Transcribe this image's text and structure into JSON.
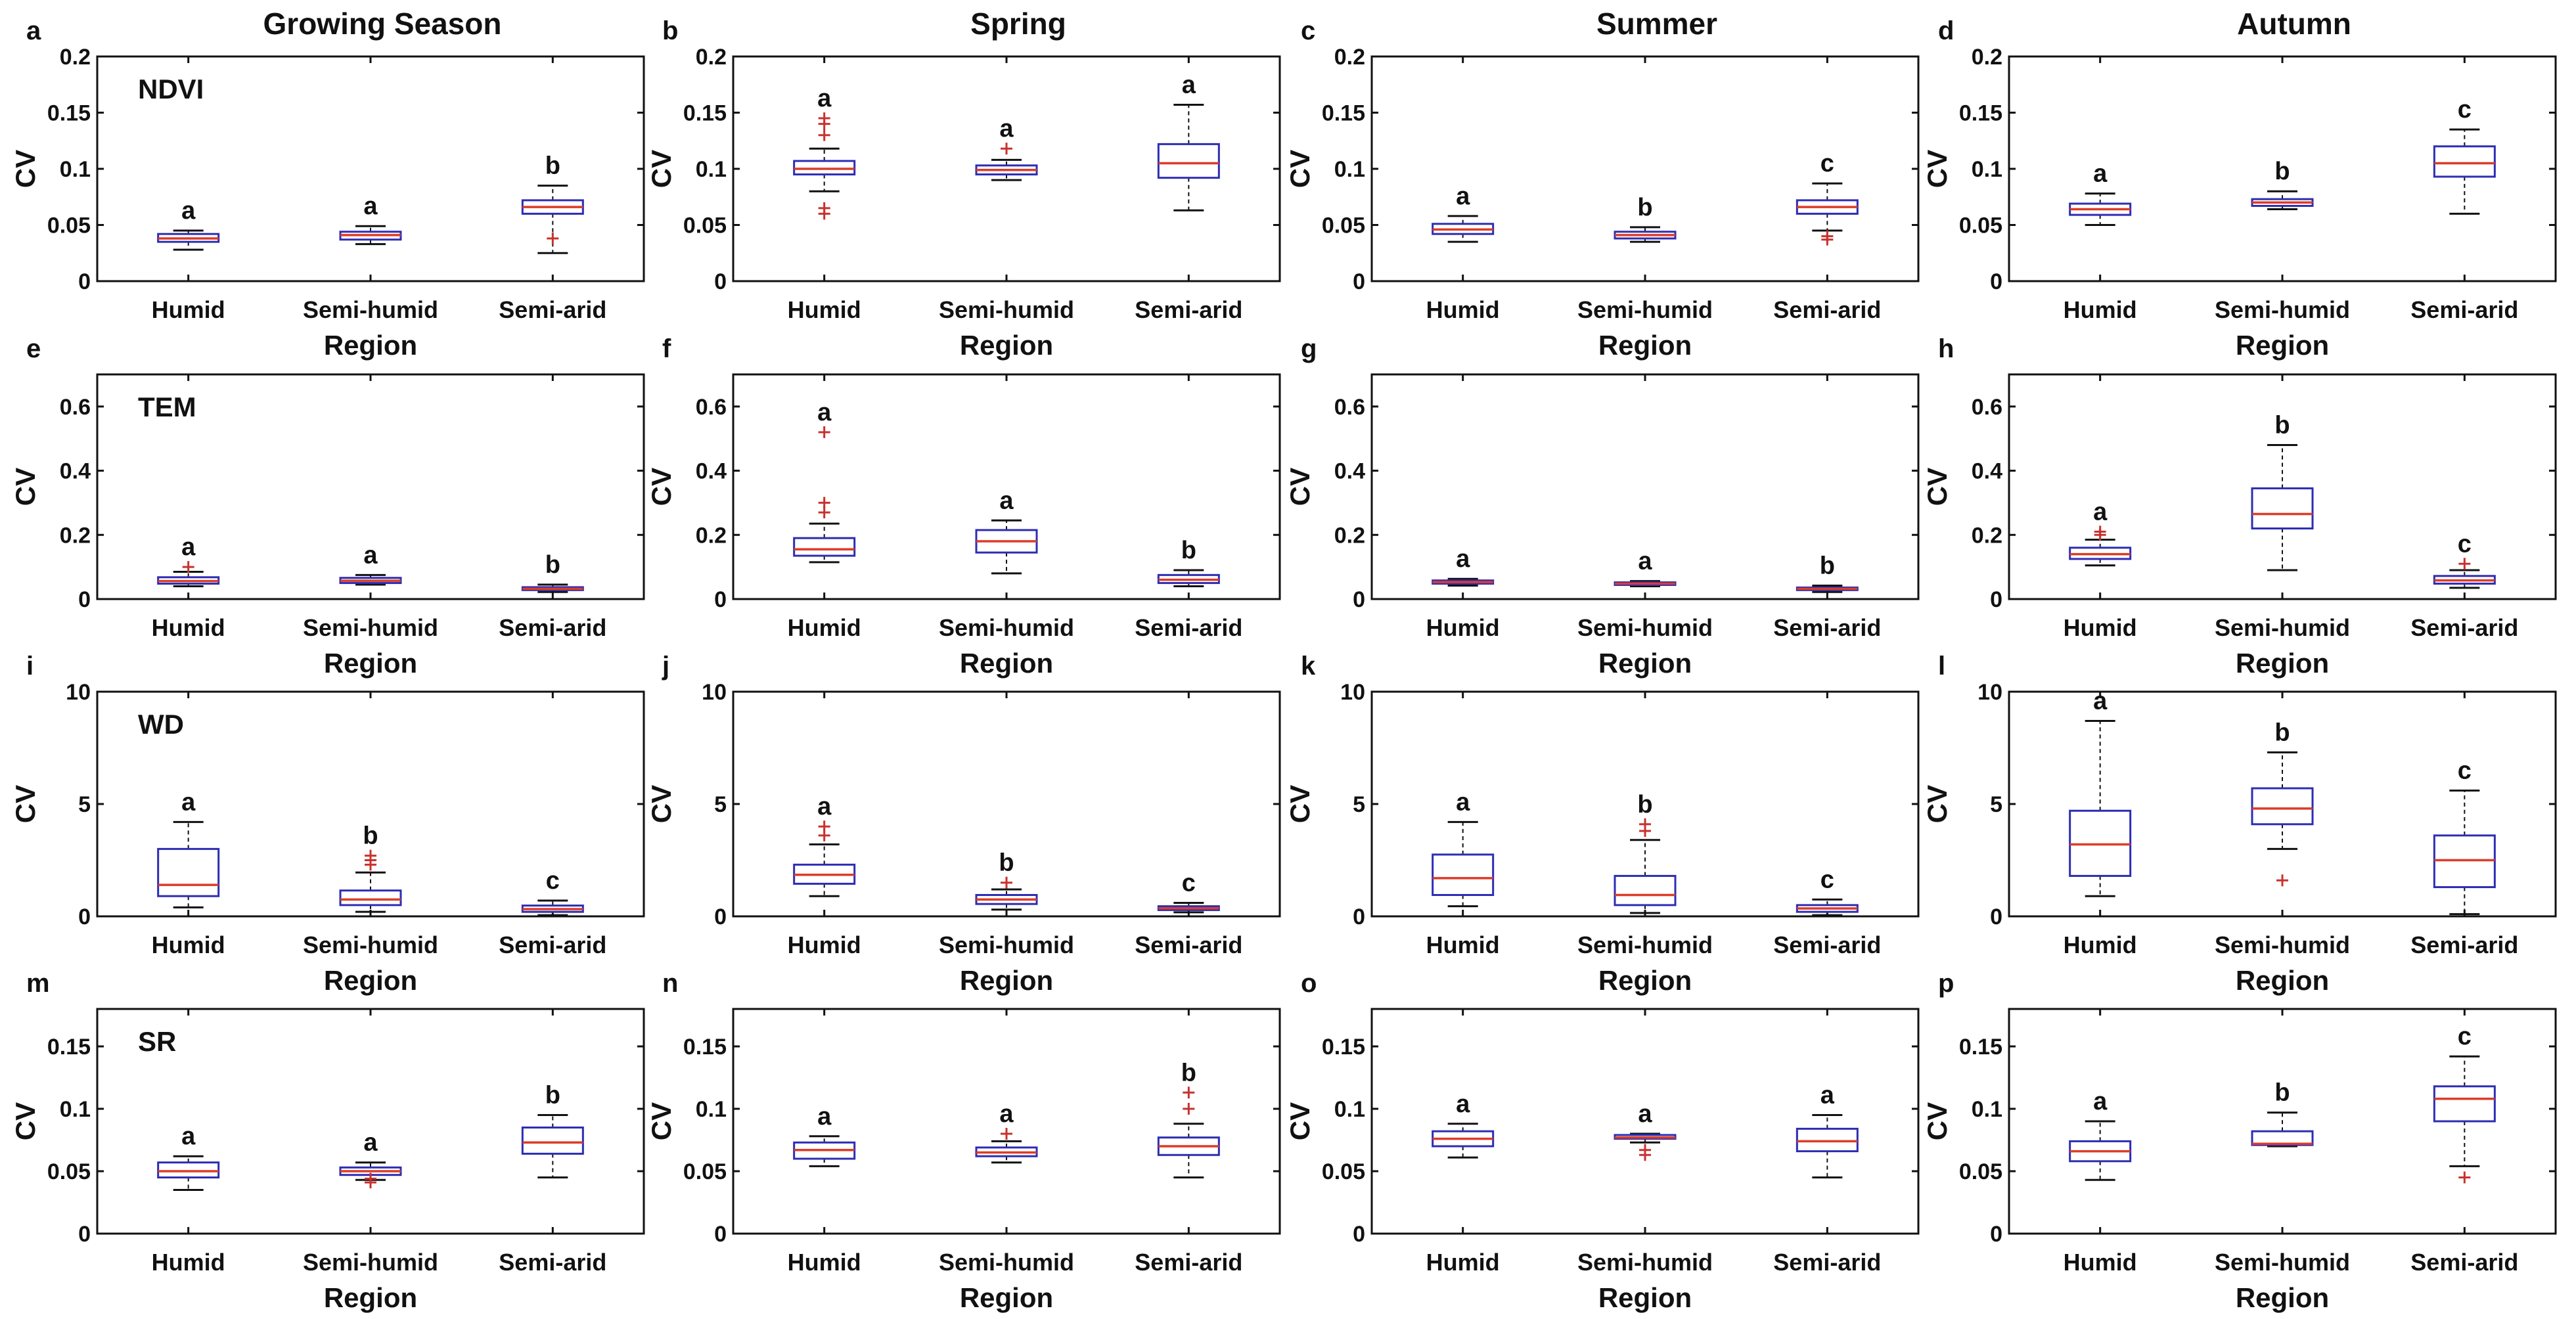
{
  "figure": {
    "column_titles": [
      "Growing Season",
      "Spring",
      "Summer",
      "Autumn"
    ],
    "row_variables": [
      "NDVI",
      "TEM",
      "WD",
      "SR"
    ],
    "panel_letters": [
      "a",
      "b",
      "c",
      "d",
      "e",
      "f",
      "g",
      "h",
      "i",
      "j",
      "k",
      "l",
      "m",
      "n",
      "o",
      "p"
    ]
  },
  "chart_data": [
    {
      "type": "box",
      "letter": "a",
      "season": "Growing Season",
      "variable": "NDVI",
      "title": "",
      "xlabel": "Region",
      "ylabel": "CV",
      "categories": [
        "Humid",
        "Semi-humid",
        "Semi-arid"
      ],
      "ylim": [
        0,
        0.2
      ],
      "yticks": [
        0,
        0.05,
        0.1,
        0.15,
        0.2
      ],
      "ytick_labels": [
        "0",
        "0.05",
        "0.1",
        "0.15",
        "0.2"
      ],
      "sig_letters": [
        "a",
        "a",
        "b"
      ],
      "boxes": [
        {
          "q1": 0.035,
          "median": 0.038,
          "q3": 0.042,
          "whisker_low": 0.028,
          "whisker_high": 0.045,
          "outliers": []
        },
        {
          "q1": 0.037,
          "median": 0.041,
          "q3": 0.044,
          "whisker_low": 0.033,
          "whisker_high": 0.049,
          "outliers": []
        },
        {
          "q1": 0.06,
          "median": 0.066,
          "q3": 0.072,
          "whisker_low": 0.025,
          "whisker_high": 0.085,
          "outliers": [
            0.038
          ]
        }
      ]
    },
    {
      "type": "box",
      "letter": "b",
      "season": "Spring",
      "variable": "NDVI",
      "title": "",
      "xlabel": "Region",
      "ylabel": "CV",
      "categories": [
        "Humid",
        "Semi-humid",
        "Semi-arid"
      ],
      "ylim": [
        0,
        0.2
      ],
      "yticks": [
        0,
        0.05,
        0.1,
        0.15,
        0.2
      ],
      "ytick_labels": [
        "0",
        "0.05",
        "0.1",
        "0.15",
        "0.2"
      ],
      "sig_letters": [
        "a",
        "a",
        "a"
      ],
      "boxes": [
        {
          "q1": 0.095,
          "median": 0.1,
          "q3": 0.107,
          "whisker_low": 0.08,
          "whisker_high": 0.118,
          "outliers": [
            0.06,
            0.065,
            0.13,
            0.14,
            0.145
          ]
        },
        {
          "q1": 0.095,
          "median": 0.099,
          "q3": 0.103,
          "whisker_low": 0.09,
          "whisker_high": 0.108,
          "outliers": [
            0.118
          ]
        },
        {
          "q1": 0.092,
          "median": 0.105,
          "q3": 0.122,
          "whisker_low": 0.063,
          "whisker_high": 0.157,
          "outliers": []
        }
      ]
    },
    {
      "type": "box",
      "letter": "c",
      "season": "Summer",
      "variable": "NDVI",
      "title": "",
      "xlabel": "Region",
      "ylabel": "CV",
      "categories": [
        "Humid",
        "Semi-humid",
        "Semi-arid"
      ],
      "ylim": [
        0,
        0.2
      ],
      "yticks": [
        0,
        0.05,
        0.1,
        0.15,
        0.2
      ],
      "ytick_labels": [
        "0",
        "0.05",
        "0.1",
        "0.15",
        "0.2"
      ],
      "sig_letters": [
        "a",
        "b",
        "c"
      ],
      "boxes": [
        {
          "q1": 0.042,
          "median": 0.046,
          "q3": 0.051,
          "whisker_low": 0.035,
          "whisker_high": 0.058,
          "outliers": []
        },
        {
          "q1": 0.038,
          "median": 0.041,
          "q3": 0.044,
          "whisker_low": 0.035,
          "whisker_high": 0.048,
          "outliers": []
        },
        {
          "q1": 0.06,
          "median": 0.066,
          "q3": 0.072,
          "whisker_low": 0.045,
          "whisker_high": 0.087,
          "outliers": [
            0.037,
            0.04
          ]
        }
      ]
    },
    {
      "type": "box",
      "letter": "d",
      "season": "Autumn",
      "variable": "NDVI",
      "title": "",
      "xlabel": "Region",
      "ylabel": "CV",
      "categories": [
        "Humid",
        "Semi-humid",
        "Semi-arid"
      ],
      "ylim": [
        0,
        0.2
      ],
      "yticks": [
        0,
        0.05,
        0.1,
        0.15,
        0.2
      ],
      "ytick_labels": [
        "0",
        "0.05",
        "0.1",
        "0.15",
        "0.2"
      ],
      "sig_letters": [
        "a",
        "b",
        "c"
      ],
      "boxes": [
        {
          "q1": 0.059,
          "median": 0.064,
          "q3": 0.069,
          "whisker_low": 0.05,
          "whisker_high": 0.078,
          "outliers": []
        },
        {
          "q1": 0.067,
          "median": 0.07,
          "q3": 0.073,
          "whisker_low": 0.064,
          "whisker_high": 0.08,
          "outliers": []
        },
        {
          "q1": 0.093,
          "median": 0.105,
          "q3": 0.12,
          "whisker_low": 0.06,
          "whisker_high": 0.135,
          "outliers": []
        }
      ]
    },
    {
      "type": "box",
      "letter": "e",
      "season": "Growing Season",
      "variable": "TEM",
      "title": "",
      "xlabel": "Region",
      "ylabel": "CV",
      "categories": [
        "Humid",
        "Semi-humid",
        "Semi-arid"
      ],
      "ylim": [
        0,
        0.7
      ],
      "yticks": [
        0,
        0.2,
        0.4,
        0.6
      ],
      "ytick_labels": [
        "0",
        "0.2",
        "0.4",
        "0.6"
      ],
      "sig_letters": [
        "a",
        "a",
        "b"
      ],
      "boxes": [
        {
          "q1": 0.048,
          "median": 0.056,
          "q3": 0.068,
          "whisker_low": 0.04,
          "whisker_high": 0.085,
          "outliers": [
            0.1
          ]
        },
        {
          "q1": 0.05,
          "median": 0.057,
          "q3": 0.066,
          "whisker_low": 0.045,
          "whisker_high": 0.075,
          "outliers": []
        },
        {
          "q1": 0.028,
          "median": 0.032,
          "q3": 0.037,
          "whisker_low": 0.022,
          "whisker_high": 0.045,
          "outliers": []
        }
      ]
    },
    {
      "type": "box",
      "letter": "f",
      "season": "Spring",
      "variable": "TEM",
      "title": "",
      "xlabel": "Region",
      "ylabel": "CV",
      "categories": [
        "Humid",
        "Semi-humid",
        "Semi-arid"
      ],
      "ylim": [
        0,
        0.7
      ],
      "yticks": [
        0,
        0.2,
        0.4,
        0.6
      ],
      "ytick_labels": [
        "0",
        "0.2",
        "0.4",
        "0.6"
      ],
      "sig_letters": [
        "a",
        "a",
        "b"
      ],
      "boxes": [
        {
          "q1": 0.135,
          "median": 0.155,
          "q3": 0.19,
          "whisker_low": 0.115,
          "whisker_high": 0.235,
          "outliers": [
            0.27,
            0.3,
            0.52
          ]
        },
        {
          "q1": 0.145,
          "median": 0.18,
          "q3": 0.215,
          "whisker_low": 0.08,
          "whisker_high": 0.245,
          "outliers": []
        },
        {
          "q1": 0.05,
          "median": 0.06,
          "q3": 0.075,
          "whisker_low": 0.04,
          "whisker_high": 0.09,
          "outliers": []
        }
      ]
    },
    {
      "type": "box",
      "letter": "g",
      "season": "Summer",
      "variable": "TEM",
      "title": "",
      "xlabel": "Region",
      "ylabel": "CV",
      "categories": [
        "Humid",
        "Semi-humid",
        "Semi-arid"
      ],
      "ylim": [
        0,
        0.7
      ],
      "yticks": [
        0,
        0.2,
        0.4,
        0.6
      ],
      "ytick_labels": [
        "0",
        "0.2",
        "0.4",
        "0.6"
      ],
      "sig_letters": [
        "a",
        "a",
        "b"
      ],
      "boxes": [
        {
          "q1": 0.048,
          "median": 0.053,
          "q3": 0.058,
          "whisker_low": 0.042,
          "whisker_high": 0.063,
          "outliers": []
        },
        {
          "q1": 0.044,
          "median": 0.048,
          "q3": 0.052,
          "whisker_low": 0.04,
          "whisker_high": 0.056,
          "outliers": []
        },
        {
          "q1": 0.028,
          "median": 0.032,
          "q3": 0.036,
          "whisker_low": 0.022,
          "whisker_high": 0.042,
          "outliers": []
        }
      ]
    },
    {
      "type": "box",
      "letter": "h",
      "season": "Autumn",
      "variable": "TEM",
      "title": "",
      "xlabel": "Region",
      "ylabel": "CV",
      "categories": [
        "Humid",
        "Semi-humid",
        "Semi-arid"
      ],
      "ylim": [
        0,
        0.7
      ],
      "yticks": [
        0,
        0.2,
        0.4,
        0.6
      ],
      "ytick_labels": [
        "0",
        "0.2",
        "0.4",
        "0.6"
      ],
      "sig_letters": [
        "a",
        "b",
        "c"
      ],
      "boxes": [
        {
          "q1": 0.125,
          "median": 0.14,
          "q3": 0.16,
          "whisker_low": 0.105,
          "whisker_high": 0.185,
          "outliers": [
            0.2,
            0.21
          ]
        },
        {
          "q1": 0.22,
          "median": 0.265,
          "q3": 0.345,
          "whisker_low": 0.09,
          "whisker_high": 0.48,
          "outliers": []
        },
        {
          "q1": 0.048,
          "median": 0.058,
          "q3": 0.072,
          "whisker_low": 0.035,
          "whisker_high": 0.09,
          "outliers": [
            0.11
          ]
        }
      ]
    },
    {
      "type": "box",
      "letter": "i",
      "season": "Growing Season",
      "variable": "WD",
      "title": "",
      "xlabel": "Region",
      "ylabel": "CV",
      "categories": [
        "Humid",
        "Semi-humid",
        "Semi-arid"
      ],
      "ylim": [
        0,
        10
      ],
      "yticks": [
        0,
        5,
        10
      ],
      "ytick_labels": [
        "0",
        "5",
        "10"
      ],
      "sig_letters": [
        "a",
        "b",
        "c"
      ],
      "boxes": [
        {
          "q1": 0.9,
          "median": 1.4,
          "q3": 3.0,
          "whisker_low": 0.4,
          "whisker_high": 4.2,
          "outliers": []
        },
        {
          "q1": 0.5,
          "median": 0.75,
          "q3": 1.15,
          "whisker_low": 0.2,
          "whisker_high": 1.95,
          "outliers": [
            2.3,
            2.5,
            2.7
          ]
        },
        {
          "q1": 0.2,
          "median": 0.32,
          "q3": 0.48,
          "whisker_low": 0.05,
          "whisker_high": 0.7,
          "outliers": []
        }
      ]
    },
    {
      "type": "box",
      "letter": "j",
      "season": "Spring",
      "variable": "WD",
      "title": "",
      "xlabel": "Region",
      "ylabel": "CV",
      "categories": [
        "Humid",
        "Semi-humid",
        "Semi-arid"
      ],
      "ylim": [
        0,
        10
      ],
      "yticks": [
        0,
        5,
        10
      ],
      "ytick_labels": [
        "0",
        "5",
        "10"
      ],
      "sig_letters": [
        "a",
        "b",
        "c"
      ],
      "boxes": [
        {
          "q1": 1.45,
          "median": 1.85,
          "q3": 2.3,
          "whisker_low": 0.9,
          "whisker_high": 3.2,
          "outliers": [
            3.6,
            4.0
          ]
        },
        {
          "q1": 0.55,
          "median": 0.75,
          "q3": 0.95,
          "whisker_low": 0.3,
          "whisker_high": 1.2,
          "outliers": [
            1.5
          ]
        },
        {
          "q1": 0.28,
          "median": 0.36,
          "q3": 0.45,
          "whisker_low": 0.18,
          "whisker_high": 0.6,
          "outliers": []
        }
      ]
    },
    {
      "type": "box",
      "letter": "k",
      "season": "Summer",
      "variable": "WD",
      "title": "",
      "xlabel": "Region",
      "ylabel": "CV",
      "categories": [
        "Humid",
        "Semi-humid",
        "Semi-arid"
      ],
      "ylim": [
        0,
        10
      ],
      "yticks": [
        0,
        5,
        10
      ],
      "ytick_labels": [
        "0",
        "5",
        "10"
      ],
      "sig_letters": [
        "a",
        "b",
        "c"
      ],
      "boxes": [
        {
          "q1": 0.95,
          "median": 1.7,
          "q3": 2.75,
          "whisker_low": 0.45,
          "whisker_high": 4.2,
          "outliers": []
        },
        {
          "q1": 0.5,
          "median": 0.95,
          "q3": 1.8,
          "whisker_low": 0.15,
          "whisker_high": 3.4,
          "outliers": [
            3.8,
            4.1
          ]
        },
        {
          "q1": 0.2,
          "median": 0.35,
          "q3": 0.5,
          "whisker_low": 0.05,
          "whisker_high": 0.75,
          "outliers": []
        }
      ]
    },
    {
      "type": "box",
      "letter": "l",
      "season": "Autumn",
      "variable": "WD",
      "title": "",
      "xlabel": "Region",
      "ylabel": "CV",
      "categories": [
        "Humid",
        "Semi-humid",
        "Semi-arid"
      ],
      "ylim": [
        0,
        10
      ],
      "yticks": [
        0,
        5,
        10
      ],
      "ytick_labels": [
        "0",
        "5",
        "10"
      ],
      "sig_letters": [
        "a",
        "b",
        "c"
      ],
      "boxes": [
        {
          "q1": 1.8,
          "median": 3.2,
          "q3": 4.7,
          "whisker_low": 0.9,
          "whisker_high": 8.7,
          "outliers": []
        },
        {
          "q1": 4.1,
          "median": 4.8,
          "q3": 5.7,
          "whisker_low": 3.0,
          "whisker_high": 7.3,
          "outliers": [
            1.6
          ]
        },
        {
          "q1": 1.3,
          "median": 2.5,
          "q3": 3.6,
          "whisker_low": 0.1,
          "whisker_high": 5.6,
          "outliers": []
        }
      ]
    },
    {
      "type": "box",
      "letter": "m",
      "season": "Growing Season",
      "variable": "SR",
      "title": "",
      "xlabel": "Region",
      "ylabel": "CV",
      "categories": [
        "Humid",
        "Semi-humid",
        "Semi-arid"
      ],
      "ylim": [
        0,
        0.18
      ],
      "yticks": [
        0,
        0.05,
        0.1,
        0.15
      ],
      "ytick_labels": [
        "0",
        "0.05",
        "0.1",
        "0.15"
      ],
      "sig_letters": [
        "a",
        "a",
        "b"
      ],
      "boxes": [
        {
          "q1": 0.045,
          "median": 0.05,
          "q3": 0.057,
          "whisker_low": 0.035,
          "whisker_high": 0.062,
          "outliers": []
        },
        {
          "q1": 0.047,
          "median": 0.05,
          "q3": 0.053,
          "whisker_low": 0.043,
          "whisker_high": 0.057,
          "outliers": [
            0.041,
            0.044
          ]
        },
        {
          "q1": 0.064,
          "median": 0.073,
          "q3": 0.085,
          "whisker_low": 0.045,
          "whisker_high": 0.095,
          "outliers": []
        }
      ]
    },
    {
      "type": "box",
      "letter": "n",
      "season": "Spring",
      "variable": "SR",
      "title": "",
      "xlabel": "Region",
      "ylabel": "CV",
      "categories": [
        "Humid",
        "Semi-humid",
        "Semi-arid"
      ],
      "ylim": [
        0,
        0.18
      ],
      "yticks": [
        0,
        0.05,
        0.1,
        0.15
      ],
      "ytick_labels": [
        "0",
        "0.05",
        "0.1",
        "0.15"
      ],
      "sig_letters": [
        "a",
        "a",
        "b"
      ],
      "boxes": [
        {
          "q1": 0.06,
          "median": 0.067,
          "q3": 0.073,
          "whisker_low": 0.054,
          "whisker_high": 0.078,
          "outliers": []
        },
        {
          "q1": 0.062,
          "median": 0.065,
          "q3": 0.069,
          "whisker_low": 0.057,
          "whisker_high": 0.074,
          "outliers": [
            0.08
          ]
        },
        {
          "q1": 0.063,
          "median": 0.07,
          "q3": 0.077,
          "whisker_low": 0.045,
          "whisker_high": 0.088,
          "outliers": [
            0.1,
            0.113
          ]
        }
      ]
    },
    {
      "type": "box",
      "letter": "o",
      "season": "Summer",
      "variable": "SR",
      "title": "",
      "xlabel": "Region",
      "ylabel": "CV",
      "categories": [
        "Humid",
        "Semi-humid",
        "Semi-arid"
      ],
      "ylim": [
        0,
        0.18
      ],
      "yticks": [
        0,
        0.05,
        0.1,
        0.15
      ],
      "ytick_labels": [
        "0",
        "0.05",
        "0.1",
        "0.15"
      ],
      "sig_letters": [
        "a",
        "a",
        "a"
      ],
      "boxes": [
        {
          "q1": 0.07,
          "median": 0.076,
          "q3": 0.082,
          "whisker_low": 0.061,
          "whisker_high": 0.088,
          "outliers": []
        },
        {
          "q1": 0.076,
          "median": 0.077,
          "q3": 0.079,
          "whisker_low": 0.073,
          "whisker_high": 0.08,
          "outliers": [
            0.063,
            0.067
          ]
        },
        {
          "q1": 0.066,
          "median": 0.074,
          "q3": 0.084,
          "whisker_low": 0.045,
          "whisker_high": 0.095,
          "outliers": []
        }
      ]
    },
    {
      "type": "box",
      "letter": "p",
      "season": "Autumn",
      "variable": "SR",
      "title": "",
      "xlabel": "Region",
      "ylabel": "CV",
      "categories": [
        "Humid",
        "Semi-humid",
        "Semi-arid"
      ],
      "ylim": [
        0,
        0.18
      ],
      "yticks": [
        0,
        0.05,
        0.1,
        0.15
      ],
      "ytick_labels": [
        "0",
        "0.05",
        "0.1",
        "0.15"
      ],
      "sig_letters": [
        "a",
        "b",
        "c"
      ],
      "boxes": [
        {
          "q1": 0.058,
          "median": 0.066,
          "q3": 0.074,
          "whisker_low": 0.043,
          "whisker_high": 0.09,
          "outliers": []
        },
        {
          "q1": 0.071,
          "median": 0.072,
          "q3": 0.082,
          "whisker_low": 0.07,
          "whisker_high": 0.097,
          "outliers": []
        },
        {
          "q1": 0.09,
          "median": 0.108,
          "q3": 0.118,
          "whisker_low": 0.054,
          "whisker_high": 0.142,
          "outliers": [
            0.045
          ]
        }
      ]
    }
  ],
  "colors": {
    "box_fill": "#ffffff",
    "box_edge": "#2d2db4",
    "box_edge_light": "#aeb0dc",
    "median": "#dc3c28",
    "outlier": "#c8322d",
    "axis": "#111111"
  }
}
